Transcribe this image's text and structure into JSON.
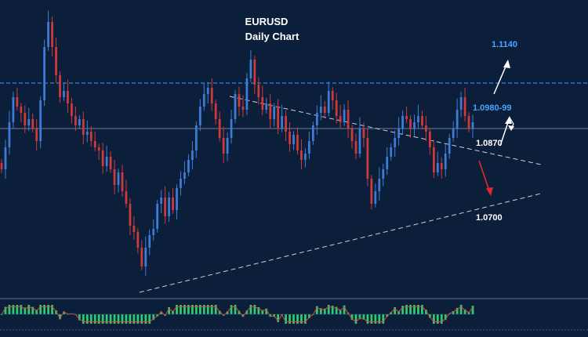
{
  "chart_data": {
    "type": "candlestick",
    "title": "EURUSD",
    "subtitle": "Daily Chart",
    "ylim": [
      1.03,
      1.125
    ],
    "colors": {
      "background": "#0b1f3a",
      "bull": "#3d7dd8",
      "bear": "#d23a3a",
      "trendline": "#c8d0dc",
      "resistance": "#2f86e6",
      "support_text": "#ffffff",
      "oscillator": "#2ecc71",
      "signal": "#e04a3a"
    },
    "levels": [
      {
        "label": "1.1140",
        "value": 1.114,
        "color": "#4aa3ff"
      },
      {
        "label": "1.0980-99",
        "value": 1.0985,
        "color": "#4aa3ff",
        "dashed_line": true
      },
      {
        "label": "1.0870",
        "value": 1.087,
        "color": "#ffffff"
      },
      {
        "label": "1.0700",
        "value": 1.07,
        "color": "#ffffff"
      }
    ],
    "reference_line": 1.084,
    "closes": [
      1.071,
      1.078,
      1.086,
      1.094,
      1.091,
      1.089,
      1.085,
      1.087,
      1.084,
      1.08,
      1.093,
      1.11,
      1.118,
      1.11,
      1.101,
      1.094,
      1.096,
      1.092,
      1.088,
      1.085,
      1.087,
      1.082,
      1.083,
      1.08,
      1.078,
      1.077,
      1.072,
      1.075,
      1.071,
      1.066,
      1.07,
      1.064,
      1.06,
      1.053,
      1.051,
      1.046,
      1.04,
      1.046,
      1.05,
      1.052,
      1.06,
      1.062,
      1.056,
      1.062,
      1.058,
      1.065,
      1.068,
      1.07,
      1.074,
      1.077,
      1.085,
      1.091,
      1.095,
      1.097,
      1.092,
      1.087,
      1.081,
      1.076,
      1.081,
      1.087,
      1.095,
      1.091,
      1.09,
      1.1,
      1.106,
      1.098,
      1.094,
      1.09,
      1.092,
      1.087,
      1.091,
      1.084,
      1.088,
      1.083,
      1.079,
      1.082,
      1.077,
      1.074,
      1.076,
      1.08,
      1.085,
      1.089,
      1.091,
      1.089,
      1.096,
      1.093,
      1.088,
      1.086,
      1.09,
      1.084,
      1.08,
      1.076,
      1.084,
      1.081,
      1.068,
      1.06,
      1.064,
      1.068,
      1.071,
      1.075,
      1.078,
      1.081,
      1.084,
      1.088,
      1.087,
      1.084,
      1.086,
      1.088,
      1.085,
      1.083,
      1.078,
      1.07,
      1.073,
      1.071,
      1.076,
      1.081,
      1.084,
      1.09,
      1.094,
      1.088,
      1.084,
      1.086
    ]
  }
}
